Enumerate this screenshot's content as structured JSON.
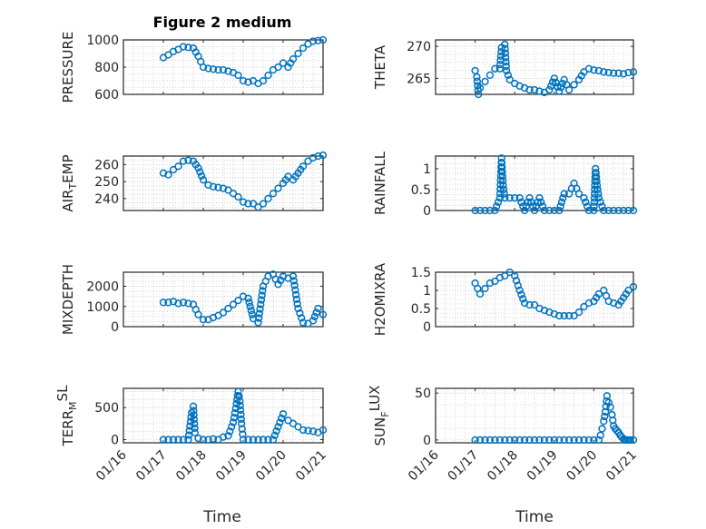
{
  "figure": {
    "title": "Figure 2 medium",
    "xlabel": "Time",
    "date_ticks": [
      "01/16",
      "01/17",
      "01/18",
      "01/19",
      "01/20",
      "01/21"
    ],
    "marker_color": "#0072bd"
  },
  "chart_data": [
    {
      "type": "scatter",
      "ylabel": "PRESSURE",
      "title": "Figure 2 medium",
      "xlim": [
        "01/16",
        "01/21"
      ],
      "ylim": [
        600,
        1000
      ],
      "yticks": [
        600,
        800,
        1000
      ],
      "grid": true,
      "x": [
        "01/17 00:00",
        "01/17 03:00",
        "01/17 06:00",
        "01/17 09:00",
        "01/17 12:00",
        "01/17 15:00",
        "01/17 18:00",
        "01/17 21:00",
        "01/18 00:00",
        "01/18 03:00",
        "01/18 06:00",
        "01/18 09:00",
        "01/18 12:00",
        "01/18 15:00",
        "01/18 18:00",
        "01/18 21:00",
        "01/19 00:00",
        "01/19 03:00",
        "01/19 06:00",
        "01/19 09:00",
        "01/19 12:00",
        "01/19 15:00",
        "01/19 18:00",
        "01/19 21:00",
        "01/20 00:00",
        "01/20 03:00",
        "01/20 06:00",
        "01/20 09:00",
        "01/20 12:00",
        "01/20 15:00",
        "01/20 18:00",
        "01/20 21:00",
        "01/21 00:00"
      ],
      "y": [
        870,
        890,
        915,
        930,
        950,
        945,
        940,
        880,
        800,
        790,
        785,
        780,
        780,
        770,
        760,
        740,
        700,
        690,
        700,
        680,
        700,
        740,
        780,
        800,
        830,
        800,
        860,
        900,
        940,
        970,
        990,
        995,
        1000
      ]
    },
    {
      "type": "scatter",
      "ylabel": "THETA",
      "xlim": [
        "01/16",
        "01/21"
      ],
      "ylim": [
        262.5,
        271
      ],
      "yticks": [
        265,
        270
      ],
      "grid": true,
      "x": [
        "01/17 00:00",
        "01/17 01:00",
        "01/17 02:00",
        "01/17 03:00",
        "01/17 06:00",
        "01/17 09:00",
        "01/17 12:00",
        "01/17 15:00",
        "01/17 16:00",
        "01/17 18:00",
        "01/17 19:00",
        "01/17 20:00",
        "01/17 21:00",
        "01/18 00:00",
        "01/18 03:00",
        "01/18 06:00",
        "01/18 09:00",
        "01/18 12:00",
        "01/18 15:00",
        "01/18 18:00",
        "01/18 21:00",
        "01/19 00:00",
        "01/19 03:00",
        "01/19 06:00",
        "01/19 09:00",
        "01/19 12:00",
        "01/19 15:00",
        "01/19 18:00",
        "01/19 21:00",
        "01/20 00:00",
        "01/20 03:00",
        "01/20 06:00",
        "01/20 09:00",
        "01/20 12:00",
        "01/20 15:00",
        "01/20 18:00",
        "01/20 21:00",
        "01/21 00:00"
      ],
      "y": [
        266.2,
        265.2,
        262.5,
        263.5,
        264.5,
        265.5,
        266.5,
        266.5,
        269.8,
        270.3,
        266.2,
        265.5,
        264.8,
        264.2,
        263.8,
        263.5,
        263.2,
        263.2,
        263.0,
        262.8,
        263.2,
        265.0,
        263.0,
        264.8,
        263.2,
        264.0,
        264.8,
        266.0,
        266.5,
        266.3,
        266.2,
        266.0,
        265.9,
        265.8,
        265.8,
        265.7,
        265.9,
        266.0
      ]
    },
    {
      "type": "scatter",
      "ylabel": "AIR_TEMP",
      "xlim": [
        "01/16",
        "01/21"
      ],
      "ylim": [
        233,
        265
      ],
      "yticks": [
        240,
        250,
        260
      ],
      "grid": true,
      "x": [
        "01/17 00:00",
        "01/17 03:00",
        "01/17 06:00",
        "01/17 09:00",
        "01/17 12:00",
        "01/17 15:00",
        "01/17 18:00",
        "01/17 21:00",
        "01/18 00:00",
        "01/18 03:00",
        "01/18 06:00",
        "01/18 09:00",
        "01/18 12:00",
        "01/18 15:00",
        "01/18 18:00",
        "01/18 21:00",
        "01/19 00:00",
        "01/19 03:00",
        "01/19 06:00",
        "01/19 09:00",
        "01/19 12:00",
        "01/19 15:00",
        "01/19 18:00",
        "01/19 21:00",
        "01/20 00:00",
        "01/20 03:00",
        "01/20 06:00",
        "01/20 09:00",
        "01/20 12:00",
        "01/20 15:00",
        "01/20 18:00",
        "01/20 21:00",
        "01/21 00:00"
      ],
      "y": [
        255,
        254,
        257,
        259,
        262,
        262.5,
        262,
        258,
        251,
        248,
        247,
        246.5,
        246,
        245,
        243,
        241,
        238,
        237,
        237,
        235,
        237,
        240,
        243,
        246,
        249,
        253,
        251,
        255,
        259,
        262,
        264,
        265,
        265.5
      ]
    },
    {
      "type": "scatter",
      "ylabel": "RAINFALL",
      "xlim": [
        "01/16",
        "01/21"
      ],
      "ylim": [
        0,
        1.3
      ],
      "yticks": [
        0,
        0.5,
        1
      ],
      "grid": true,
      "x": [
        "01/17 00:00",
        "01/17 03:00",
        "01/17 06:00",
        "01/17 09:00",
        "01/17 12:00",
        "01/17 15:00",
        "01/17 16:00",
        "01/17 17:00",
        "01/17 18:00",
        "01/17 21:00",
        "01/18 00:00",
        "01/18 03:00",
        "01/18 06:00",
        "01/18 09:00",
        "01/18 12:00",
        "01/18 15:00",
        "01/18 18:00",
        "01/18 21:00",
        "01/19 00:00",
        "01/19 03:00",
        "01/19 06:00",
        "01/19 09:00",
        "01/19 12:00",
        "01/19 15:00",
        "01/19 18:00",
        "01/19 21:00",
        "01/20 00:00",
        "01/20 01:00",
        "01/20 02:00",
        "01/20 03:00",
        "01/20 06:00",
        "01/20 09:00",
        "01/20 12:00",
        "01/20 15:00",
        "01/20 18:00",
        "01/20 21:00",
        "01/21 00:00"
      ],
      "y": [
        0,
        0,
        0,
        0,
        0,
        0.3,
        1.25,
        0.6,
        0.3,
        0.3,
        0.3,
        0.3,
        0,
        0.3,
        0,
        0.3,
        0,
        0,
        0,
        0,
        0.4,
        0.4,
        0.65,
        0.4,
        0.3,
        0,
        0,
        1.0,
        0.6,
        0.3,
        0,
        0,
        0,
        0,
        0,
        0,
        0
      ]
    },
    {
      "type": "scatter",
      "ylabel": "MIXDEPTH",
      "xlim": [
        "01/16",
        "01/21"
      ],
      "ylim": [
        0,
        2700
      ],
      "yticks": [
        0,
        1000,
        2000
      ],
      "grid": true,
      "x": [
        "01/17 00:00",
        "01/17 03:00",
        "01/17 06:00",
        "01/17 09:00",
        "01/17 12:00",
        "01/17 15:00",
        "01/17 18:00",
        "01/17 21:00",
        "01/18 00:00",
        "01/18 03:00",
        "01/18 06:00",
        "01/18 09:00",
        "01/18 12:00",
        "01/18 15:00",
        "01/18 18:00",
        "01/18 21:00",
        "01/19 00:00",
        "01/19 03:00",
        "01/19 06:00",
        "01/19 09:00",
        "01/19 12:00",
        "01/19 15:00",
        "01/19 18:00",
        "01/19 21:00",
        "01/20 00:00",
        "01/20 03:00",
        "01/20 06:00",
        "01/20 09:00",
        "01/20 12:00",
        "01/20 15:00",
        "01/20 18:00",
        "01/20 21:00",
        "01/21 00:00"
      ],
      "y": [
        1200,
        1200,
        1250,
        1150,
        1200,
        1150,
        1100,
        600,
        350,
        350,
        450,
        550,
        700,
        900,
        1100,
        1300,
        1500,
        1400,
        400,
        200,
        2000,
        2500,
        2600,
        2100,
        2500,
        2400,
        2500,
        900,
        200,
        150,
        300,
        900,
        600
      ]
    },
    {
      "type": "scatter",
      "ylabel": "H2OMIXRA",
      "xlim": [
        "01/16",
        "01/21"
      ],
      "ylim": [
        0,
        1.5
      ],
      "yticks": [
        0,
        0.5,
        1,
        1.5
      ],
      "grid": true,
      "x": [
        "01/17 00:00",
        "01/17 03:00",
        "01/17 06:00",
        "01/17 09:00",
        "01/17 12:00",
        "01/17 15:00",
        "01/17 18:00",
        "01/17 21:00",
        "01/18 00:00",
        "01/18 03:00",
        "01/18 06:00",
        "01/18 09:00",
        "01/18 12:00",
        "01/18 15:00",
        "01/18 18:00",
        "01/18 21:00",
        "01/19 00:00",
        "01/19 03:00",
        "01/19 06:00",
        "01/19 09:00",
        "01/19 12:00",
        "01/19 15:00",
        "01/19 18:00",
        "01/19 21:00",
        "01/20 00:00",
        "01/20 03:00",
        "01/20 06:00",
        "01/20 09:00",
        "01/20 12:00",
        "01/20 15:00",
        "01/20 18:00",
        "01/20 21:00",
        "01/21 00:00"
      ],
      "y": [
        1.2,
        0.9,
        1.05,
        1.2,
        1.25,
        1.35,
        1.4,
        1.5,
        1.4,
        1.0,
        0.65,
        0.6,
        0.6,
        0.5,
        0.45,
        0.4,
        0.35,
        0.3,
        0.3,
        0.3,
        0.3,
        0.4,
        0.55,
        0.65,
        0.7,
        0.9,
        1.0,
        0.7,
        0.65,
        0.6,
        0.8,
        1.0,
        1.1
      ]
    },
    {
      "type": "scatter",
      "ylabel": "TERR_MSL",
      "xlim": [
        "01/16",
        "01/21"
      ],
      "ylim": [
        -50,
        800
      ],
      "yticks": [
        0,
        500
      ],
      "grid": true,
      "x": [
        "01/17 00:00",
        "01/17 03:00",
        "01/17 06:00",
        "01/17 09:00",
        "01/17 12:00",
        "01/17 15:00",
        "01/17 17:00",
        "01/17 18:00",
        "01/17 19:00",
        "01/17 21:00",
        "01/18 00:00",
        "01/18 03:00",
        "01/18 06:00",
        "01/18 09:00",
        "01/18 12:00",
        "01/18 15:00",
        "01/18 18:00",
        "01/18 20:00",
        "01/18 21:00",
        "01/18 22:00",
        "01/18 23:00",
        "01/19 00:00",
        "01/19 03:00",
        "01/19 06:00",
        "01/19 09:00",
        "01/19 12:00",
        "01/19 15:00",
        "01/19 18:00",
        "01/19 21:00",
        "01/20 00:00",
        "01/20 03:00",
        "01/20 06:00",
        "01/20 09:00",
        "01/20 12:00",
        "01/20 15:00",
        "01/20 18:00",
        "01/20 21:00",
        "01/21 00:00"
      ],
      "y": [
        0,
        0,
        0,
        0,
        0,
        0,
        420,
        520,
        110,
        20,
        0,
        0,
        10,
        0,
        40,
        60,
        270,
        560,
        750,
        600,
        250,
        0,
        0,
        0,
        0,
        0,
        0,
        0,
        200,
        400,
        300,
        250,
        200,
        150,
        140,
        130,
        110,
        150
      ]
    },
    {
      "type": "scatter",
      "ylabel": "SUN_FLUX",
      "xlim": [
        "01/16",
        "01/21"
      ],
      "ylim": [
        -3,
        55
      ],
      "yticks": [
        0,
        50
      ],
      "grid": true,
      "x": [
        "01/17 00:00",
        "01/17 06:00",
        "01/17 12:00",
        "01/17 18:00",
        "01/18 00:00",
        "01/18 06:00",
        "01/18 12:00",
        "01/18 18:00",
        "01/19 00:00",
        "01/19 06:00",
        "01/19 12:00",
        "01/19 18:00",
        "01/20 00:00",
        "01/20 03:00",
        "01/20 04:00",
        "01/20 05:00",
        "01/20 06:00",
        "01/20 07:00",
        "01/20 08:00",
        "01/20 09:00",
        "01/20 10:00",
        "01/20 11:00",
        "01/20 12:00",
        "01/20 13:00",
        "01/20 14:00",
        "01/20 15:00",
        "01/20 16:00",
        "01/20 17:00",
        "01/20 18:00",
        "01/20 19:00",
        "01/20 20:00",
        "01/20 21:00",
        "01/20 22:00",
        "01/21 00:00"
      ],
      "y": [
        0,
        0,
        0,
        0,
        0,
        0,
        0,
        0,
        0,
        0,
        0,
        0,
        0,
        0,
        5,
        12,
        20,
        30,
        47,
        40,
        35,
        27,
        15,
        12,
        10,
        8,
        5,
        3,
        1,
        0,
        0,
        0,
        0,
        0
      ]
    }
  ]
}
